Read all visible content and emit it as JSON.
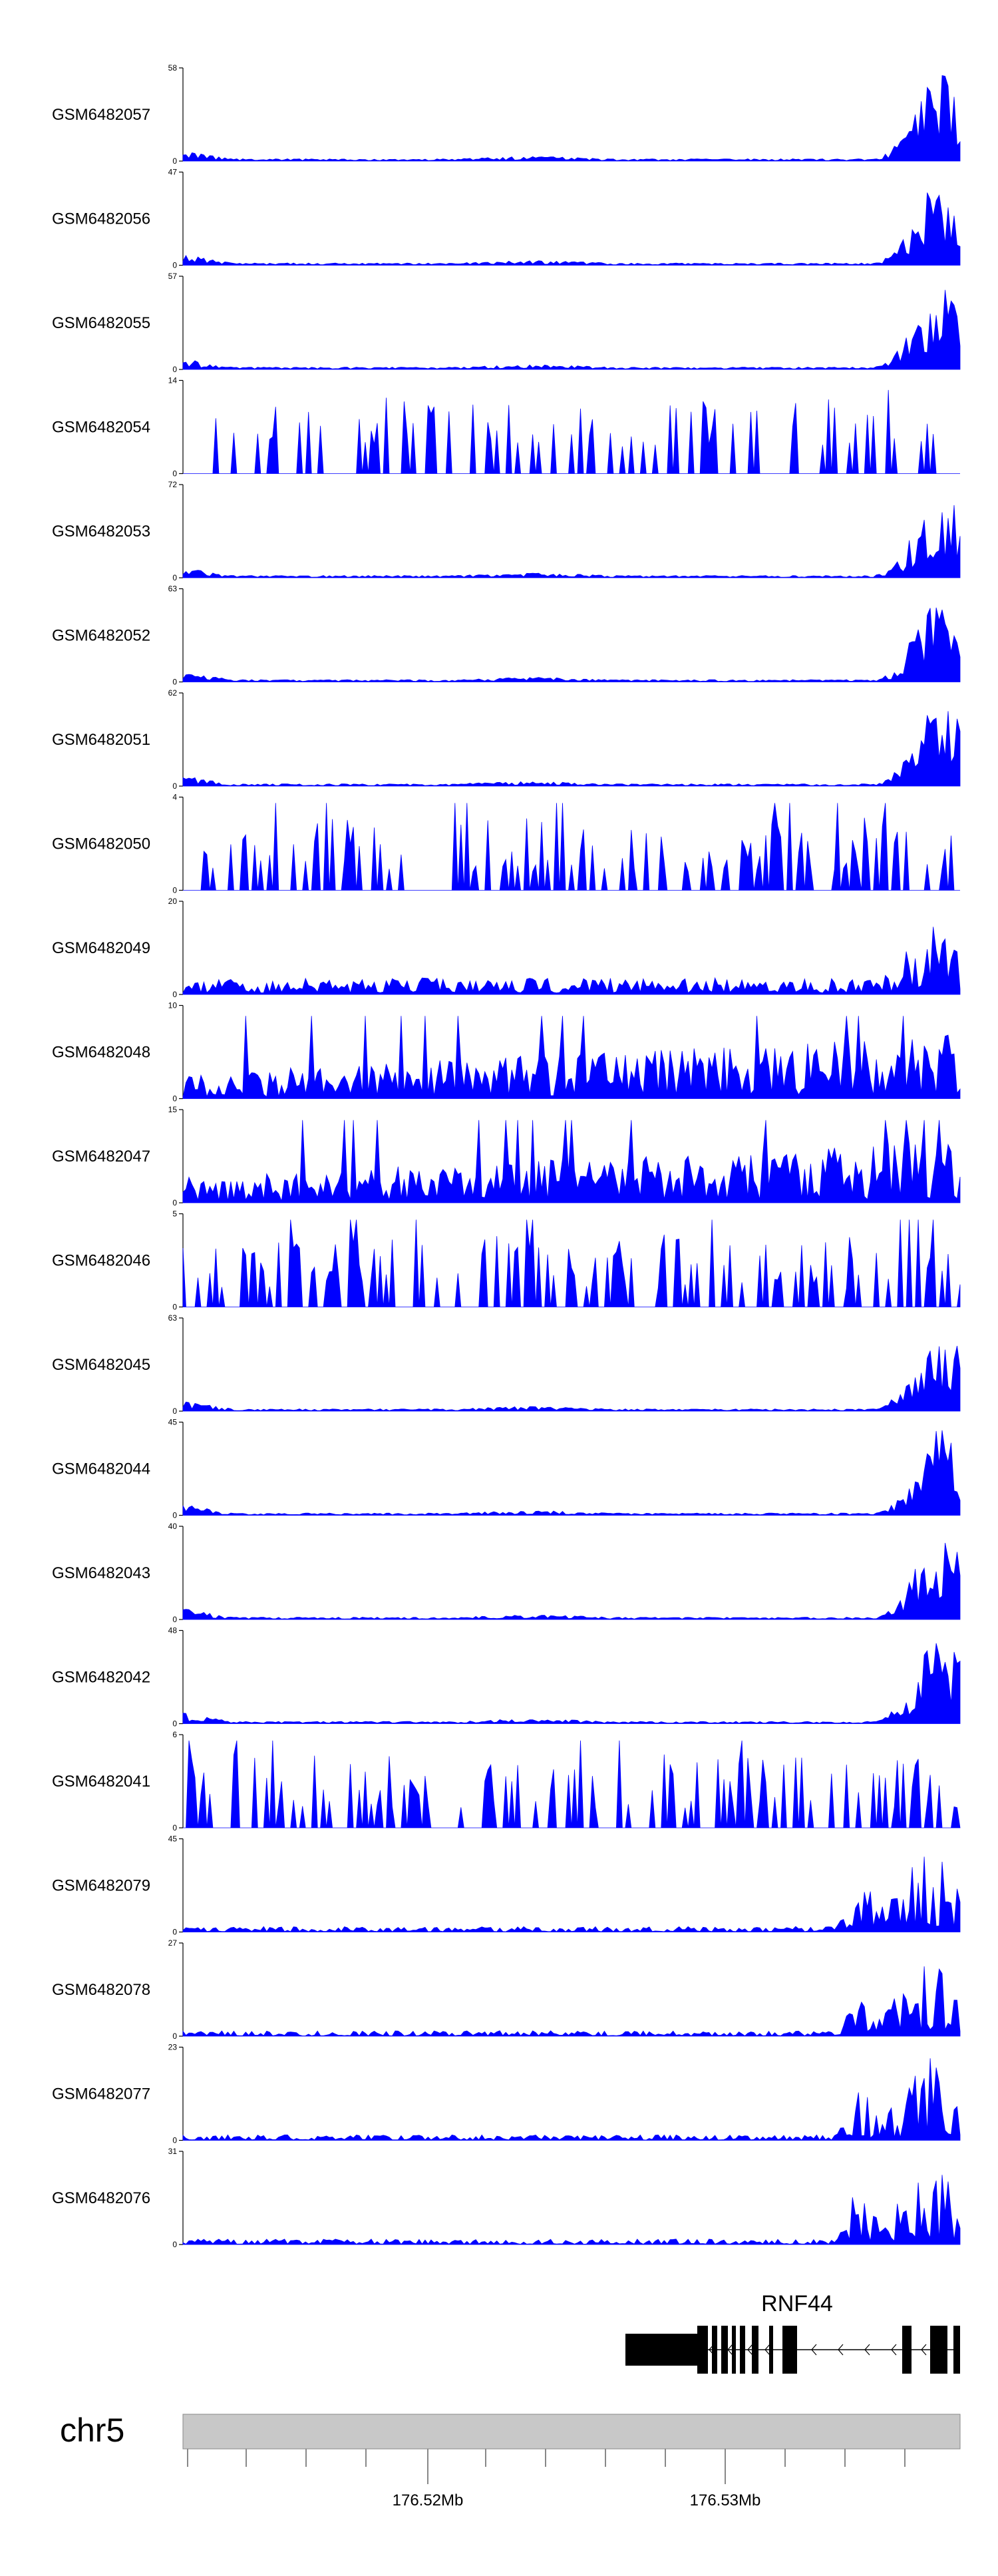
{
  "chart_data": {
    "type": "area",
    "track_color": "#0000ff",
    "chromosome": "chr5",
    "gene": "RNF44",
    "position_ticks": [
      "176.52Mb",
      "176.53Mb"
    ],
    "y_min": "0",
    "tracks": [
      {
        "name": "GSM6482057",
        "max": 58,
        "ymax_label": "58",
        "profile": "peak"
      },
      {
        "name": "GSM6482056",
        "max": 47,
        "ymax_label": "47",
        "profile": "peak"
      },
      {
        "name": "GSM6482055",
        "max": 57,
        "ymax_label": "57",
        "profile": "peak"
      },
      {
        "name": "GSM6482054",
        "max": 14,
        "ymax_label": "14",
        "profile": "sparse"
      },
      {
        "name": "GSM6482053",
        "max": 72,
        "ymax_label": "72",
        "profile": "peak"
      },
      {
        "name": "GSM6482052",
        "max": 63,
        "ymax_label": "63",
        "profile": "peak"
      },
      {
        "name": "GSM6482051",
        "max": 62,
        "ymax_label": "62",
        "profile": "peak"
      },
      {
        "name": "GSM6482050",
        "max": 4,
        "ymax_label": "4",
        "profile": "spiky"
      },
      {
        "name": "GSM6482049",
        "max": 20,
        "ymax_label": "20",
        "profile": "medium"
      },
      {
        "name": "GSM6482048",
        "max": 10,
        "ymax_label": "10",
        "profile": "dense"
      },
      {
        "name": "GSM6482047",
        "max": 15,
        "ymax_label": "15",
        "profile": "dense"
      },
      {
        "name": "GSM6482046",
        "max": 5,
        "ymax_label": "5",
        "profile": "spiky"
      },
      {
        "name": "GSM6482045",
        "max": 63,
        "ymax_label": "63",
        "profile": "peak"
      },
      {
        "name": "GSM6482044",
        "max": 45,
        "ymax_label": "45",
        "profile": "peak"
      },
      {
        "name": "GSM6482043",
        "max": 40,
        "ymax_label": "40",
        "profile": "peak"
      },
      {
        "name": "GSM6482042",
        "max": 48,
        "ymax_label": "48",
        "profile": "peak"
      },
      {
        "name": "GSM6482041",
        "max": 6,
        "ymax_label": "6",
        "profile": "spiky"
      },
      {
        "name": "GSM6482079",
        "max": 45,
        "ymax_label": "45",
        "profile": "lowpeak"
      },
      {
        "name": "GSM6482078",
        "max": 27,
        "ymax_label": "27",
        "profile": "lowpeak"
      },
      {
        "name": "GSM6482077",
        "max": 23,
        "ymax_label": "23",
        "profile": "lowpeak"
      },
      {
        "name": "GSM6482076",
        "max": 31,
        "ymax_label": "31",
        "profile": "lowpeak"
      }
    ]
  }
}
